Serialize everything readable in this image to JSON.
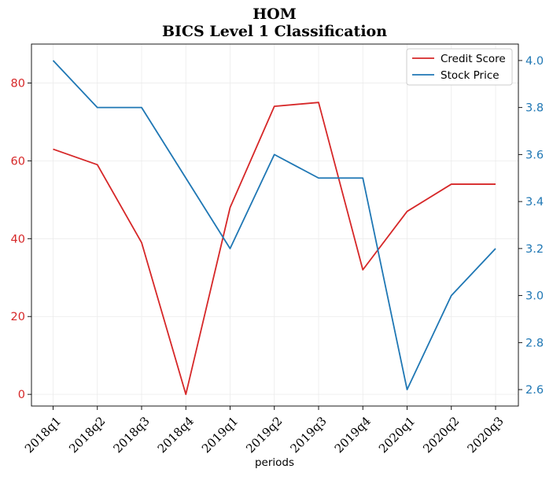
{
  "chart_data": {
    "type": "line",
    "title": "HOM",
    "subtitle": "BICS Level 1 Classification",
    "title_color": "#2f4f4f",
    "xlabel": "periods",
    "categories": [
      "2018q1",
      "2018q2",
      "2018q3",
      "2018q4",
      "2019q1",
      "2019q2",
      "2019q3",
      "2019q4",
      "2020q1",
      "2020q2",
      "2020q3"
    ],
    "grid": true,
    "legend_position": "top-right",
    "left_axis": {
      "ylim": [
        -3,
        90
      ],
      "ticks": [
        0,
        20,
        40,
        60,
        80
      ],
      "tick_labels": [
        "0",
        "20",
        "40",
        "60",
        "80"
      ],
      "color": "#d62728"
    },
    "right_axis": {
      "ylim": [
        2.53,
        4.07
      ],
      "ticks": [
        2.6,
        2.8,
        3.0,
        3.2,
        3.4,
        3.6,
        3.8,
        4.0
      ],
      "tick_labels": [
        "2.6",
        "2.8",
        "3.0",
        "3.2",
        "3.4",
        "3.6",
        "3.8",
        "4.0"
      ],
      "color": "#1f77b4"
    },
    "series": [
      {
        "name": "Credit Score",
        "axis": "left",
        "color": "#d62728",
        "values": [
          63,
          59,
          39,
          0,
          48,
          74,
          75,
          32,
          47,
          54,
          54
        ]
      },
      {
        "name": "Stock Price",
        "axis": "right",
        "color": "#1f77b4",
        "values": [
          4.0,
          3.8,
          3.8,
          3.5,
          3.2,
          3.6,
          3.5,
          3.5,
          2.6,
          3.0,
          3.2
        ]
      }
    ]
  }
}
